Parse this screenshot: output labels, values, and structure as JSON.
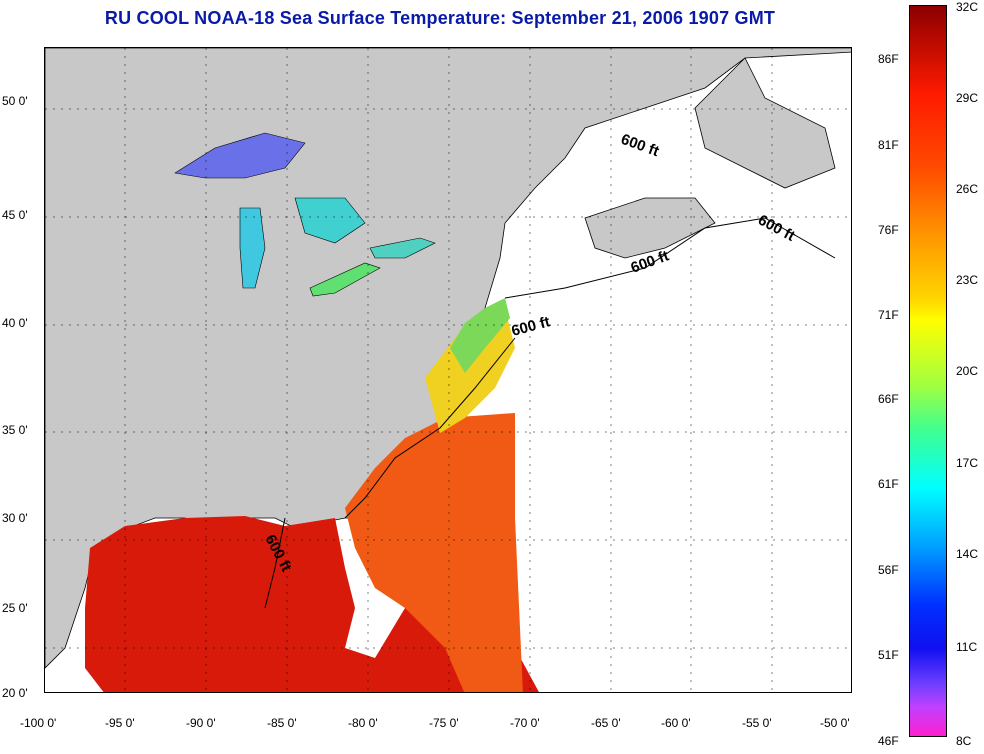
{
  "title": "RU COOL  NOAA-18  Sea Surface Temperature:  September 21, 2006 1907 GMT",
  "map": {
    "lon_ticks": [
      "-100 0'",
      "-95 0'",
      "-90 0'",
      "-85 0'",
      "-80 0'",
      "-75 0'",
      "-70 0'",
      "-65 0'",
      "-60 0'",
      "-55 0'",
      "-50 0'"
    ],
    "lat_ticks": [
      "50 0'",
      "45 0'",
      "40 0'",
      "35 0'",
      "30 0'",
      "25 0'",
      "20 0'"
    ],
    "contour_labels": [
      "600 ft",
      "600 ft",
      "600 ft",
      "600 ft",
      "600 ft"
    ],
    "colors": {
      "land": "#c8c8c8",
      "ocean_nodata": "#ffffff",
      "gulf_warm": "#d81a0a",
      "atlantic_warm": "#f05a14",
      "coastal_green": "#7cd858",
      "lakes": "#40c8e0"
    }
  },
  "colorbar": {
    "celsius": [
      "32C",
      "29C",
      "26C",
      "23C",
      "20C",
      "17C",
      "14C",
      "11C",
      "8C"
    ],
    "fahrenheit": [
      "86F",
      "81F",
      "76F",
      "71F",
      "66F",
      "61F",
      "56F",
      "51F",
      "46F"
    ]
  }
}
